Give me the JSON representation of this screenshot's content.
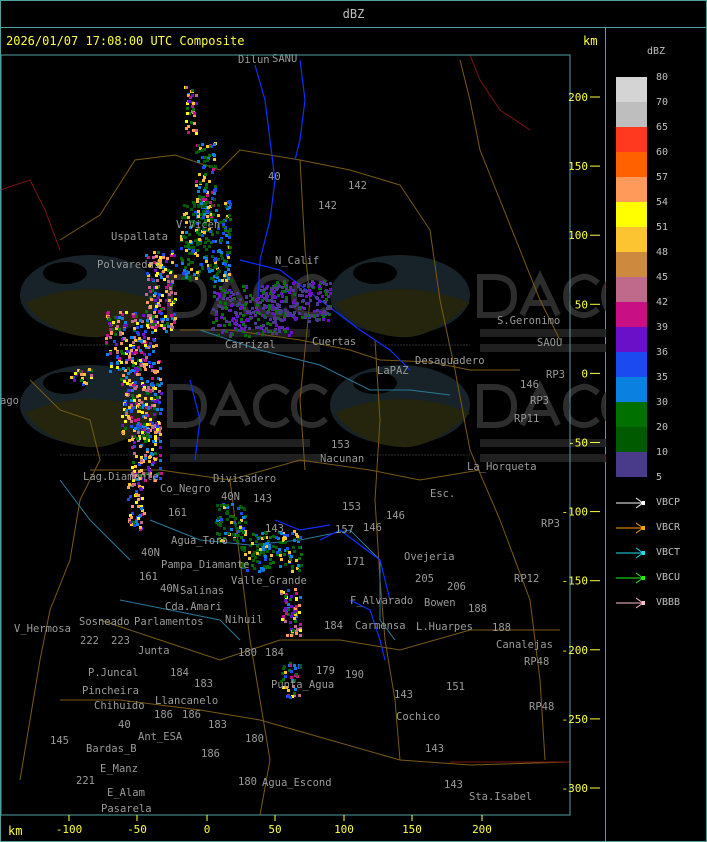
{
  "header": {
    "title": "dBZ"
  },
  "map": {
    "timestamp": "2026/01/07 17:08:00 UTC Composite",
    "unit_top": "km",
    "unit_bottom": "km",
    "x_ticks": [
      "-100",
      "-50",
      "0",
      "50",
      "100",
      "150",
      "200"
    ],
    "y_ticks": [
      "200",
      "150",
      "100",
      "50",
      "0",
      "-50",
      "-100",
      "-150",
      "-200",
      "-250",
      "-300"
    ],
    "watermark": {
      "logo_text": "DACC",
      "line1": "Dirección de Agricultura",
      "line2": "y Contingencias Climáticas",
      "url": "http://www.contingencias.mendoza.gov.ar"
    },
    "places": [
      "Dilun",
      "SANU",
      "40",
      "142",
      "142",
      "V.Vicen",
      "Uspallata",
      "N_Calif",
      "Polvaredas",
      "Cuertas",
      "Carrizal",
      "S.Geronimo",
      "SAOU",
      "Desaguadero",
      "LaPAZ",
      "RP3",
      "146",
      "RP3",
      "RP11",
      "ago",
      "153",
      "Nacunan",
      "La_Horqueta",
      "Lag.Diamante",
      "Co_Negro",
      "Divisadero",
      "40N",
      "143",
      "153",
      "146",
      "Esc.",
      "RP3",
      "161",
      "143",
      "157",
      "146",
      "Agua_Toro",
      "171",
      "Ovejeria",
      "40N",
      "Pampa_Diamante",
      "Valle_Grande",
      "161",
      "205",
      "206",
      "RP12",
      "40N",
      "Salinas",
      "Cda.Amari",
      "Parlamentos",
      "Sosneado",
      "F_Alvarado",
      "Bowen",
      "188",
      "Nihuil",
      "184",
      "Carmensa",
      "L.Huarpes",
      "188",
      "Canalejas",
      "V_Hermosa",
      "222",
      "223",
      "Junta",
      "180",
      "184",
      "RP48",
      "P.Juncal",
      "Pincheira",
      "184",
      "183",
      "Llancanelo",
      "179",
      "190",
      "Punta_Agua",
      "151",
      "143",
      "RP48",
      "Chihuido",
      "186",
      "186",
      "183",
      "40",
      "Ant_ESA",
      "Cochico",
      "145",
      "Bardas_B",
      "180",
      "186",
      "143",
      "E_Manz",
      "221",
      "E_Alam",
      "180",
      "Agua_Escond",
      "143",
      "Sta.Isabel",
      "Pasarela"
    ]
  },
  "legend": {
    "title": "dBZ",
    "levels": [
      "80",
      "70",
      "65",
      "60",
      "57",
      "54",
      "51",
      "48",
      "45",
      "42",
      "39",
      "36",
      "35",
      "30",
      "20",
      "10",
      "5"
    ],
    "colors": [
      "#d4d4d4",
      "#bebebe",
      "#ff3820",
      "#ff6000",
      "#ff9a5a",
      "#ffff00",
      "#fcc430",
      "#cd8a3e",
      "#bf6a8a",
      "#c81084",
      "#6a10c8",
      "#1a4af0",
      "#0a80e0",
      "#007000",
      "#005a00",
      "#4a3a8a"
    ],
    "radars": [
      {
        "name": "VBCP",
        "color": "#ffffff"
      },
      {
        "name": "VBCR",
        "color": "#ffa000"
      },
      {
        "name": "VBCT",
        "color": "#20e0f0"
      },
      {
        "name": "VBCU",
        "color": "#20f020"
      },
      {
        "name": "VBBB",
        "color": "#ffc0c8"
      }
    ]
  }
}
